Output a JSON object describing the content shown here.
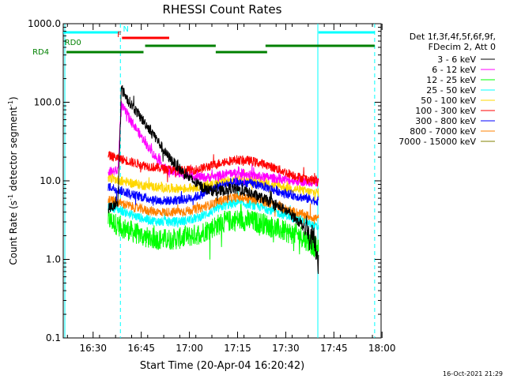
{
  "chart_data": {
    "type": "line",
    "title": "RHESSI Count Rates",
    "xlabel": "Start Time (20-Apr-04 16:20:42)",
    "ylabel_main": "Count Rate (s",
    "ylabel_sup1": "-1",
    "ylabel_mid": " detector segment",
    "ylabel_sup2": "-1",
    "ylabel_end": ")",
    "x_axis": {
      "unit": "minutes after 16:20:42",
      "range": [
        0,
        99
      ],
      "ticks": [
        {
          "value": 9.3,
          "label": "16:30"
        },
        {
          "value": 24.3,
          "label": "16:45"
        },
        {
          "value": 39.3,
          "label": "17:00"
        },
        {
          "value": 54.3,
          "label": "17:15"
        },
        {
          "value": 69.3,
          "label": "17:30"
        },
        {
          "value": 84.3,
          "label": "17:45"
        },
        {
          "value": 99.3,
          "label": "18:00"
        }
      ]
    },
    "y_axis": {
      "scale": "log",
      "range": [
        0.1,
        1000
      ],
      "ticks": [
        {
          "value": 0.1,
          "label": "0.1"
        },
        {
          "value": 1,
          "label": "1.0"
        },
        {
          "value": 10,
          "label": "10.0"
        },
        {
          "value": 100,
          "label": "100.0"
        },
        {
          "value": 1000,
          "label": "1000.0"
        }
      ]
    },
    "legend_header": [
      "Det 1f,3f,4f,5f,6f,9f,",
      "FDecim 2, Att 0"
    ],
    "legend_position": "right",
    "series": [
      {
        "name": "3 - 6 keV",
        "color": "#000000",
        "x": [
          14,
          17,
          18.1,
          20,
          24,
          28,
          32,
          35,
          38,
          41,
          44,
          48,
          52,
          56,
          60,
          64,
          68,
          72,
          75,
          78,
          79.5
        ],
        "y": [
          4.5,
          5,
          150,
          110,
          65,
          40,
          22,
          16,
          12,
          9.5,
          8,
          7.2,
          8,
          7.5,
          6.5,
          5.5,
          4.5,
          3.5,
          2.6,
          1.8,
          1.0
        ]
      },
      {
        "name": "6 - 12 keV",
        "color": "#ff00ff",
        "x": [
          14,
          17,
          18.1,
          20,
          24,
          28,
          32,
          35,
          38,
          41,
          44,
          48,
          52,
          56,
          60,
          64,
          68,
          72,
          75,
          78,
          79.5
        ],
        "y": [
          13,
          13.5,
          92,
          70,
          38,
          22,
          14,
          12.5,
          12,
          11.5,
          11,
          11.5,
          12.5,
          12.5,
          11.5,
          11,
          10.5,
          10,
          9.8,
          9.5,
          9.5
        ]
      },
      {
        "name": "12 - 25 keV",
        "color": "#00ff00",
        "x": [
          14,
          18,
          22,
          26,
          30,
          34,
          38,
          42,
          46,
          50,
          54,
          58,
          62,
          66,
          70,
          74,
          77,
          79.5
        ],
        "y": [
          3.2,
          2.6,
          2.2,
          1.9,
          1.8,
          1.8,
          1.9,
          2.1,
          2.5,
          3.0,
          3.2,
          3.1,
          2.9,
          2.5,
          2.2,
          2.0,
          1.6,
          1.3
        ]
      },
      {
        "name": "25 - 50 keV",
        "color": "#00ffff",
        "x": [
          14,
          18,
          22,
          26,
          30,
          34,
          38,
          42,
          46,
          50,
          54,
          58,
          62,
          66,
          70,
          74,
          77,
          79.5
        ],
        "y": [
          4.8,
          4.2,
          3.6,
          3.2,
          3.0,
          3.0,
          3.1,
          3.4,
          4.0,
          4.8,
          5.2,
          5.0,
          4.6,
          4.0,
          3.6,
          3.2,
          2.8,
          2.5
        ]
      },
      {
        "name": "50 - 100 keV",
        "color": "#ffd700",
        "x": [
          14,
          18,
          22,
          26,
          30,
          34,
          38,
          42,
          46,
          50,
          54,
          58,
          62,
          66,
          70,
          74,
          77,
          79.5
        ],
        "y": [
          11,
          10,
          9.2,
          8.6,
          8.2,
          8.0,
          8.0,
          8.4,
          9.0,
          9.8,
          10.2,
          10.0,
          9.4,
          8.8,
          8.2,
          7.6,
          7.2,
          7.0
        ]
      },
      {
        "name": "100 - 300 keV",
        "color": "#ff0000",
        "x": [
          14,
          18,
          22,
          26,
          30,
          34,
          38,
          42,
          46,
          50,
          54,
          58,
          62,
          66,
          70,
          74,
          77,
          79.5
        ],
        "y": [
          21,
          19,
          17,
          15.5,
          14.5,
          13.8,
          13.5,
          14,
          15.5,
          17.5,
          18.5,
          18,
          16.5,
          14.5,
          12.5,
          11,
          10.3,
          10
        ]
      },
      {
        "name": "300 - 800 keV",
        "color": "#0000ff",
        "x": [
          14,
          18,
          22,
          26,
          30,
          34,
          38,
          42,
          46,
          50,
          54,
          58,
          62,
          66,
          70,
          74,
          77,
          79.5
        ],
        "y": [
          8.5,
          7.5,
          6.6,
          6.0,
          5.6,
          5.6,
          5.8,
          6.4,
          7.6,
          9.0,
          9.6,
          9.3,
          8.6,
          7.6,
          6.8,
          6.2,
          5.8,
          5.5
        ]
      },
      {
        "name": "800 - 7000 keV",
        "color": "#ff8000",
        "x": [
          14,
          18,
          22,
          26,
          30,
          34,
          38,
          42,
          46,
          50,
          54,
          58,
          62,
          66,
          70,
          74,
          77,
          79.5
        ],
        "y": [
          5.8,
          5.2,
          4.6,
          4.2,
          4.0,
          4.0,
          4.1,
          4.4,
          5.0,
          5.8,
          6.2,
          6.0,
          5.5,
          4.9,
          4.3,
          3.8,
          3.5,
          3.3
        ]
      },
      {
        "name": "7000 - 15000 keV",
        "color": "#808000",
        "x": [
          14,
          79.5
        ],
        "y": [
          null,
          null
        ]
      }
    ],
    "state_bars": [
      {
        "label": "N",
        "color": "#00ffff",
        "label_x": 19.5,
        "level": 1,
        "segments": [
          [
            0,
            17.5
          ],
          [
            79.5,
            97
          ]
        ]
      },
      {
        "label": "F",
        "color": "#ff0000",
        "label_x": 17.5,
        "level": 2,
        "segments": [
          [
            18.3,
            33
          ]
        ]
      },
      {
        "label": "RD0",
        "color": "#008000",
        "label_x": 3,
        "level": 3,
        "segments": [
          [
            25.5,
            47.5
          ],
          [
            63,
            97
          ]
        ]
      },
      {
        "label": "RD4",
        "color": "#008000",
        "label_x": -7,
        "level": 4,
        "segments": [
          [
            1,
            25
          ],
          [
            47.5,
            63.5
          ]
        ]
      }
    ],
    "vertical_markers": [
      {
        "x": 0.5,
        "color": "#00ffff",
        "style": "solid"
      },
      {
        "x": 17.8,
        "color": "#00ffff",
        "style": "dashed"
      },
      {
        "x": 79.3,
        "color": "#00ffff",
        "style": "solid"
      },
      {
        "x": 97,
        "color": "#00ffff",
        "style": "dashed"
      }
    ],
    "timestamp": "16-Oct-2021 21:29"
  }
}
